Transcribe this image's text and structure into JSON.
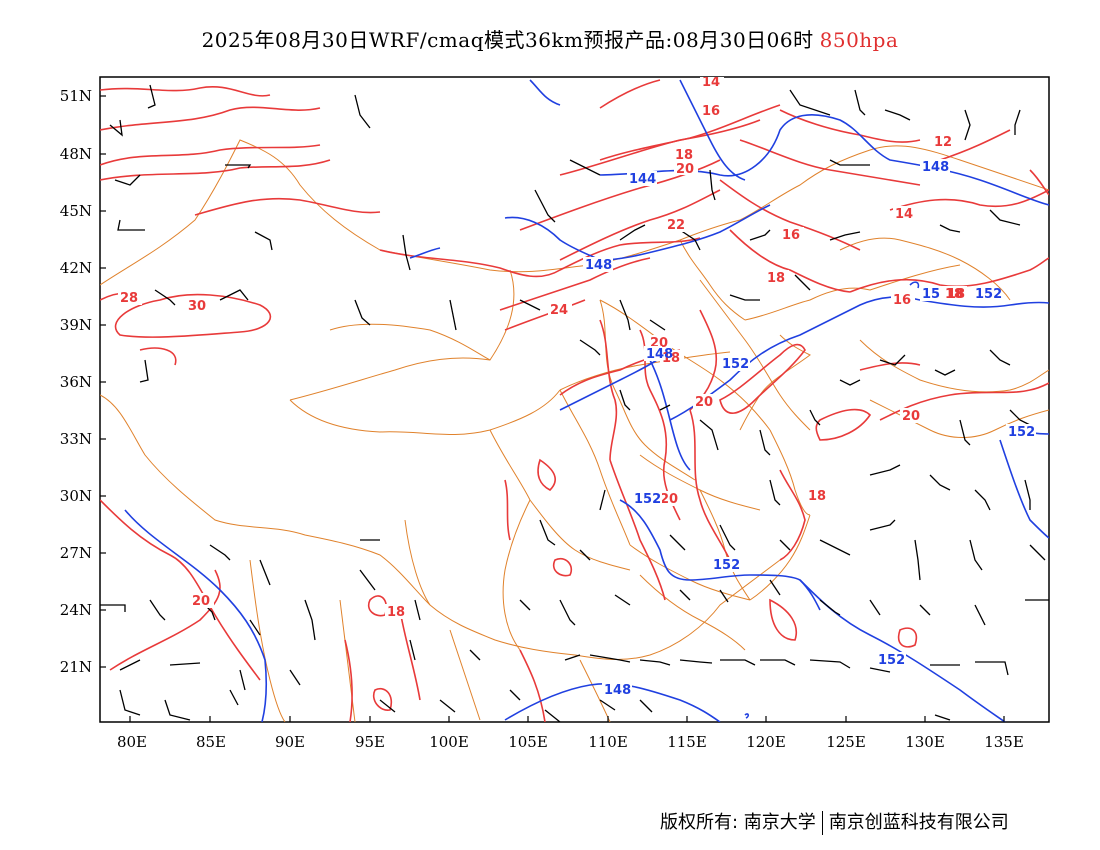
{
  "title": {
    "main": "2025年08月30日WRF/cmaq模式36km预报产品:08月30日06时",
    "level": "850hpa"
  },
  "map": {
    "lon_labels": [
      "80E",
      "85E",
      "90E",
      "95E",
      "100E",
      "105E",
      "110E",
      "115E",
      "120E",
      "125E",
      "130E",
      "135E"
    ],
    "lat_labels": [
      "51N",
      "48N",
      "45N",
      "42N",
      "39N",
      "36N",
      "33N",
      "30N",
      "27N",
      "24N",
      "21N"
    ],
    "temperature_labels": [
      "14",
      "16",
      "18",
      "20",
      "22",
      "28",
      "30",
      "24",
      "20",
      "18",
      "20",
      "20",
      "20",
      "18",
      "20",
      "18",
      "18",
      "16",
      "16",
      "14",
      "12",
      "18",
      "18"
    ],
    "height_labels": [
      "144",
      "148",
      "148",
      "148",
      "152",
      "152",
      "152",
      "152",
      "152",
      "148",
      "15",
      "152"
    ],
    "colors": {
      "temperature": "#e83a3a",
      "geopotential": "#2040e0",
      "boundary": "#e0822c",
      "wind": "#000000"
    }
  },
  "footer": {
    "left": "版权所有: 南京大学",
    "right": "南京创蓝科技有限公司"
  }
}
